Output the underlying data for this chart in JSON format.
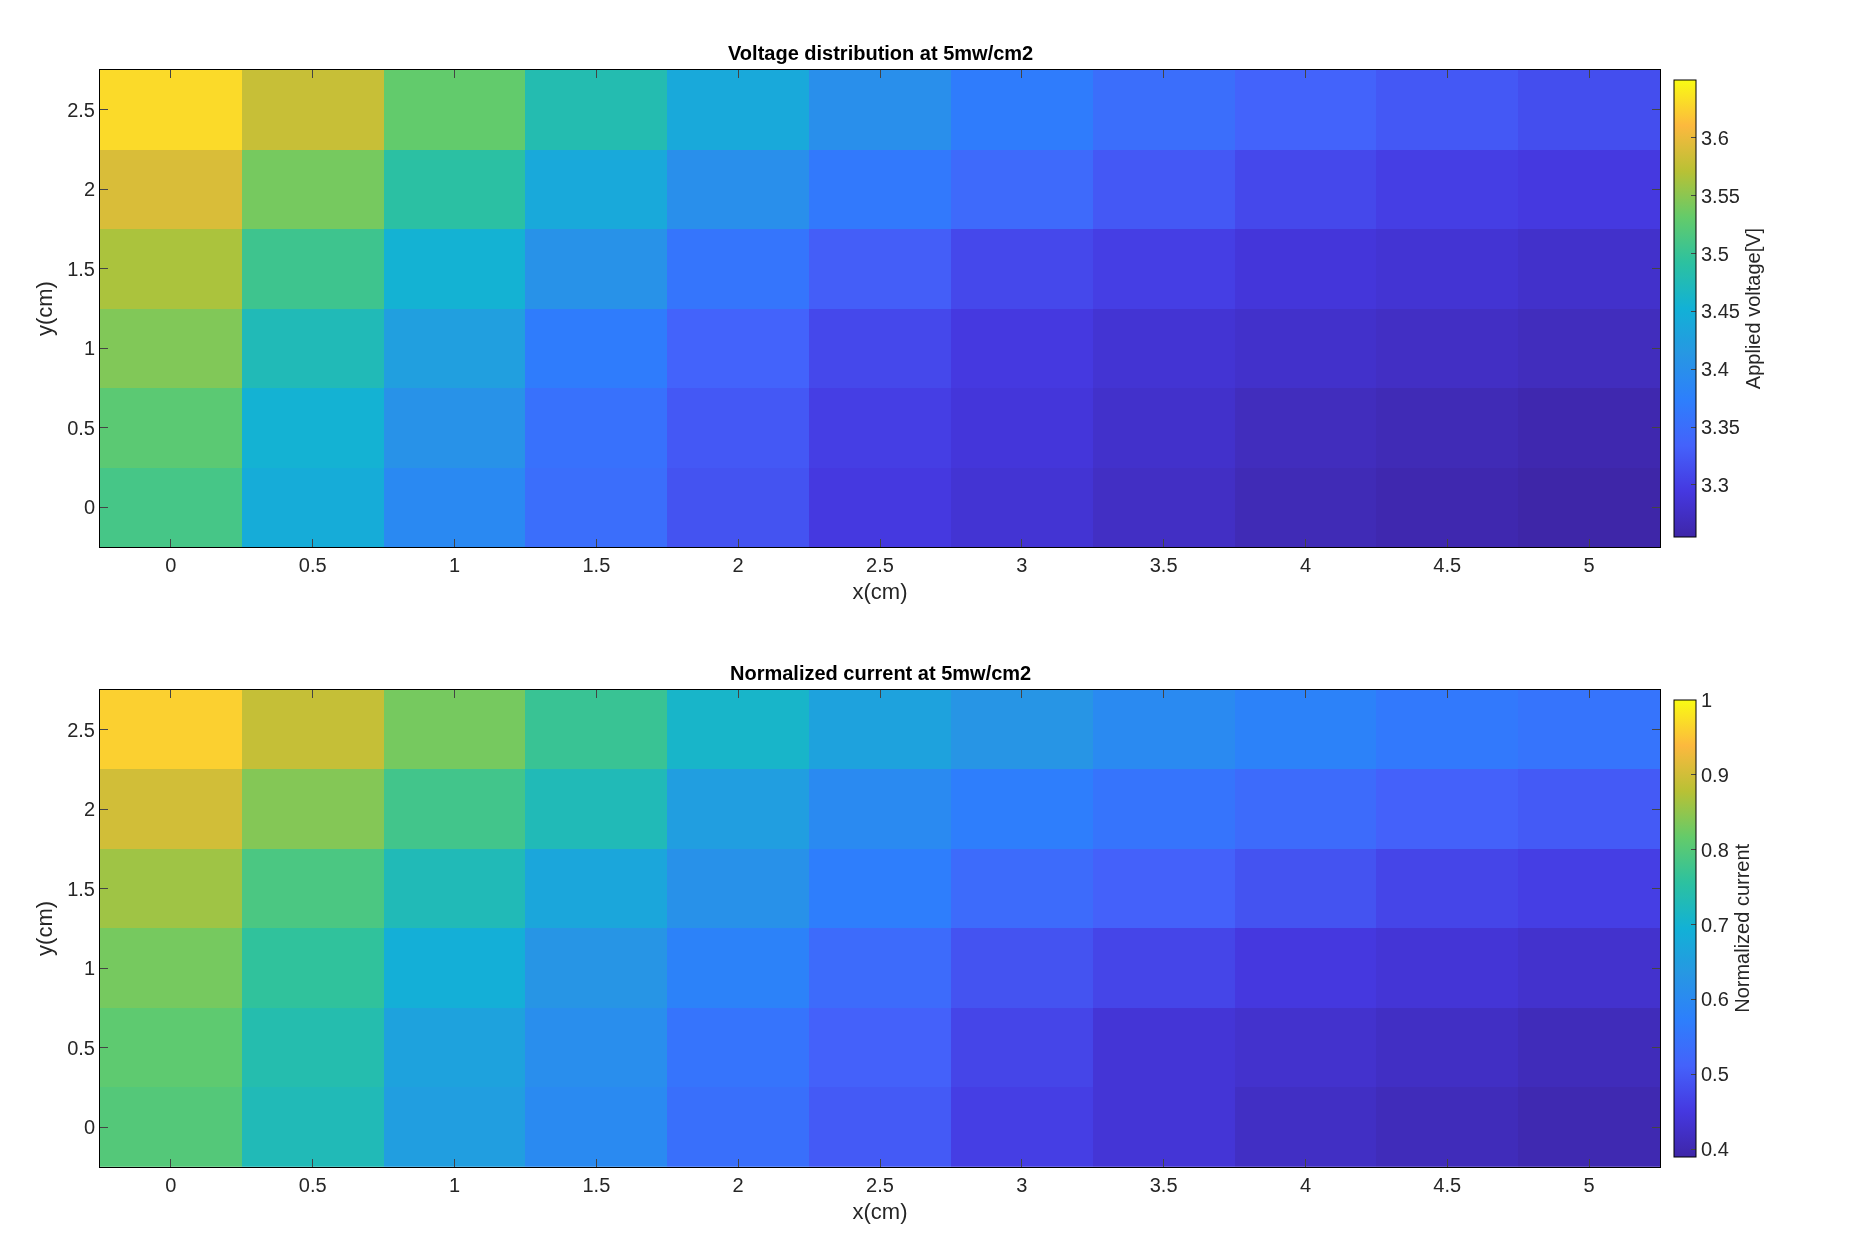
{
  "chart_data": [
    {
      "type": "heatmap",
      "title": "Voltage distribution at 5mw/cm2",
      "xlabel": "x(cm)",
      "ylabel": "y(cm)",
      "clabel": "Applied voltage[V]",
      "categories": [
        "0",
        "0.5",
        "1",
        "1.5",
        "2",
        "2.5",
        "3",
        "3.5",
        "4",
        "4.5",
        "5"
      ],
      "y_categories": [
        "2.5",
        "2",
        "1.5",
        "1",
        "0.5",
        "0"
      ],
      "cells": [
        [
          3.63,
          3.58,
          3.53,
          3.48,
          3.44,
          3.4,
          3.37,
          3.35,
          3.335,
          3.325,
          3.315
        ],
        [
          3.59,
          3.54,
          3.49,
          3.44,
          3.4,
          3.365,
          3.345,
          3.325,
          3.31,
          3.3,
          3.295
        ],
        [
          3.565,
          3.505,
          3.455,
          3.405,
          3.36,
          3.33,
          3.31,
          3.3,
          3.29,
          3.285,
          3.28
        ],
        [
          3.545,
          3.475,
          3.425,
          3.37,
          3.335,
          3.31,
          3.295,
          3.285,
          3.28,
          3.275,
          3.27
        ],
        [
          3.525,
          3.455,
          3.405,
          3.355,
          3.325,
          3.3,
          3.29,
          3.28,
          3.27,
          3.265,
          3.26
        ],
        [
          3.51,
          3.445,
          3.39,
          3.35,
          3.32,
          3.295,
          3.285,
          3.275,
          3.265,
          3.26,
          3.255
        ]
      ],
      "clim": [
        3.255,
        3.65
      ],
      "cticks": [
        3.3,
        3.35,
        3.4,
        3.45,
        3.5,
        3.55,
        3.6
      ]
    },
    {
      "type": "heatmap",
      "title": "Normalized current at 5mw/cm2",
      "xlabel": "x(cm)",
      "ylabel": "y(cm)",
      "clabel": "Normalized current",
      "categories": [
        "0",
        "0.5",
        "1",
        "1.5",
        "2",
        "2.5",
        "3",
        "3.5",
        "4",
        "4.5",
        "5"
      ],
      "y_categories": [
        "2.5",
        "2",
        "1.5",
        "1",
        "0.5",
        "0"
      ],
      "cells": [
        [
          0.96,
          0.89,
          0.83,
          0.77,
          0.71,
          0.66,
          0.63,
          0.6,
          0.58,
          0.56,
          0.55
        ],
        [
          0.9,
          0.84,
          0.78,
          0.73,
          0.65,
          0.6,
          0.57,
          0.55,
          0.53,
          0.51,
          0.5
        ],
        [
          0.86,
          0.79,
          0.73,
          0.67,
          0.62,
          0.57,
          0.53,
          0.51,
          0.49,
          0.47,
          0.46
        ],
        [
          0.83,
          0.76,
          0.69,
          0.63,
          0.58,
          0.53,
          0.49,
          0.47,
          0.45,
          0.44,
          0.43
        ],
        [
          0.81,
          0.74,
          0.66,
          0.61,
          0.55,
          0.51,
          0.47,
          0.44,
          0.43,
          0.42,
          0.41
        ],
        [
          0.8,
          0.73,
          0.65,
          0.6,
          0.54,
          0.5,
          0.46,
          0.44,
          0.42,
          0.41,
          0.4
        ]
      ],
      "clim": [
        0.39,
        1
      ],
      "cticks": [
        0.4,
        0.5,
        0.6,
        0.7,
        0.8,
        0.9,
        1
      ]
    }
  ]
}
